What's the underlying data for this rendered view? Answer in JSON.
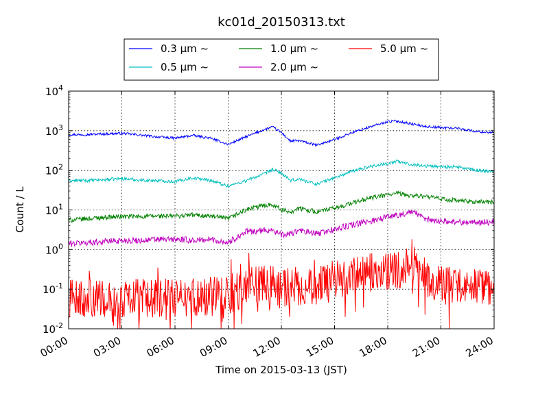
{
  "chart_data": {
    "type": "line",
    "title": "kc01d_20150313.txt",
    "xlabel": "Time on 2015-03-13 (JST)",
    "ylabel": "Count / L",
    "xlim": [
      "00:00",
      "24:00"
    ],
    "ylim": [
      0.01,
      10000
    ],
    "yscale": "log",
    "grid": true,
    "legend_position": "top, above plot",
    "x_ticks": [
      "00:00",
      "03:00",
      "06:00",
      "09:00",
      "12:00",
      "15:00",
      "18:00",
      "21:00",
      "24:00"
    ],
    "y_ticks": [
      {
        "value": 0.01,
        "base": "10",
        "exp": "-2"
      },
      {
        "value": 0.1,
        "base": "10",
        "exp": "-1"
      },
      {
        "value": 1,
        "base": "10",
        "exp": "0"
      },
      {
        "value": 10,
        "base": "10",
        "exp": "1"
      },
      {
        "value": 100,
        "base": "10",
        "exp": "2"
      },
      {
        "value": 1000,
        "base": "10",
        "exp": "3"
      },
      {
        "value": 10000,
        "base": "10",
        "exp": "4"
      }
    ],
    "series": [
      {
        "name": "0.3 µm ~",
        "color": "#0000ff",
        "noise": 0.03,
        "points": [
          [
            0,
            800
          ],
          [
            1,
            800
          ],
          [
            2,
            830
          ],
          [
            3,
            860
          ],
          [
            4,
            780
          ],
          [
            5,
            700
          ],
          [
            6,
            650
          ],
          [
            7,
            760
          ],
          [
            8,
            650
          ],
          [
            9,
            450
          ],
          [
            10,
            700
          ],
          [
            11,
            1050
          ],
          [
            11.5,
            1250
          ],
          [
            12,
            900
          ],
          [
            12.5,
            550
          ],
          [
            13,
            560
          ],
          [
            14,
            430
          ],
          [
            15,
            600
          ],
          [
            16,
            900
          ],
          [
            17,
            1250
          ],
          [
            18,
            1700
          ],
          [
            18.5,
            1750
          ],
          [
            19,
            1600
          ],
          [
            20,
            1300
          ],
          [
            21,
            1200
          ],
          [
            22,
            1150
          ],
          [
            23,
            950
          ],
          [
            24,
            900
          ]
        ]
      },
      {
        "name": "0.5 µm ~",
        "color": "#00bfbf",
        "noise": 0.04,
        "points": [
          [
            0,
            55
          ],
          [
            1,
            55
          ],
          [
            2,
            58
          ],
          [
            3,
            62
          ],
          [
            4,
            57
          ],
          [
            5,
            55
          ],
          [
            6,
            52
          ],
          [
            7,
            65
          ],
          [
            8,
            56
          ],
          [
            9,
            40
          ],
          [
            10,
            55
          ],
          [
            11,
            80
          ],
          [
            11.5,
            105
          ],
          [
            12,
            85
          ],
          [
            12.5,
            55
          ],
          [
            13,
            60
          ],
          [
            14,
            45
          ],
          [
            15,
            65
          ],
          [
            16,
            95
          ],
          [
            17,
            125
          ],
          [
            18,
            150
          ],
          [
            18.5,
            170
          ],
          [
            19,
            150
          ],
          [
            20,
            130
          ],
          [
            21,
            125
          ],
          [
            22,
            120
          ],
          [
            23,
            100
          ],
          [
            24,
            95
          ]
        ]
      },
      {
        "name": "1.0 µm ~",
        "color": "#008000",
        "noise": 0.06,
        "points": [
          [
            0,
            5.5
          ],
          [
            1,
            6
          ],
          [
            2,
            6.5
          ],
          [
            3,
            6.8
          ],
          [
            4,
            6.8
          ],
          [
            5,
            7
          ],
          [
            6,
            7
          ],
          [
            7,
            7.5
          ],
          [
            8,
            7
          ],
          [
            9,
            6
          ],
          [
            10,
            10
          ],
          [
            11,
            13
          ],
          [
            11.5,
            14
          ],
          [
            12,
            10
          ],
          [
            12.5,
            9
          ],
          [
            13,
            11
          ],
          [
            14,
            9
          ],
          [
            15,
            11
          ],
          [
            16,
            15
          ],
          [
            17,
            20
          ],
          [
            18,
            24
          ],
          [
            18.5,
            26
          ],
          [
            19,
            24
          ],
          [
            20,
            22
          ],
          [
            21,
            19
          ],
          [
            22,
            17
          ],
          [
            23,
            16
          ],
          [
            24,
            16
          ]
        ]
      },
      {
        "name": "2.0 µm ~",
        "color": "#bf00bf",
        "noise": 0.08,
        "points": [
          [
            0,
            1.4
          ],
          [
            1,
            1.5
          ],
          [
            2,
            1.6
          ],
          [
            3,
            1.7
          ],
          [
            4,
            1.7
          ],
          [
            5,
            1.8
          ],
          [
            6,
            1.8
          ],
          [
            7,
            1.7
          ],
          [
            8,
            1.8
          ],
          [
            9,
            1.5
          ],
          [
            10,
            2.8
          ],
          [
            11,
            3
          ],
          [
            11.5,
            3.2
          ],
          [
            12,
            2.3
          ],
          [
            12.5,
            2.5
          ],
          [
            13,
            3
          ],
          [
            14,
            2.5
          ],
          [
            15,
            3.2
          ],
          [
            16,
            4.2
          ],
          [
            17,
            5.2
          ],
          [
            18,
            6.8
          ],
          [
            18.5,
            7.5
          ],
          [
            19,
            8
          ],
          [
            19.5,
            9
          ],
          [
            20,
            6
          ],
          [
            21,
            5.2
          ],
          [
            22,
            5
          ],
          [
            23,
            4.8
          ],
          [
            24,
            5
          ]
        ]
      },
      {
        "name": "5.0 µm ~",
        "color": "#ff0000",
        "noise": 0.35,
        "points": [
          [
            0,
            0.06
          ],
          [
            3,
            0.06
          ],
          [
            6,
            0.06
          ],
          [
            9,
            0.07
          ],
          [
            10,
            0.12
          ],
          [
            11,
            0.14
          ],
          [
            12,
            0.11
          ],
          [
            13,
            0.12
          ],
          [
            14,
            0.12
          ],
          [
            15,
            0.18
          ],
          [
            16,
            0.22
          ],
          [
            17,
            0.26
          ],
          [
            18,
            0.28
          ],
          [
            18.5,
            0.3
          ],
          [
            19,
            0.35
          ],
          [
            19.5,
            0.4
          ],
          [
            20,
            0.22
          ],
          [
            21,
            0.13
          ],
          [
            22,
            0.12
          ],
          [
            23,
            0.12
          ],
          [
            24,
            0.12
          ]
        ]
      }
    ]
  }
}
